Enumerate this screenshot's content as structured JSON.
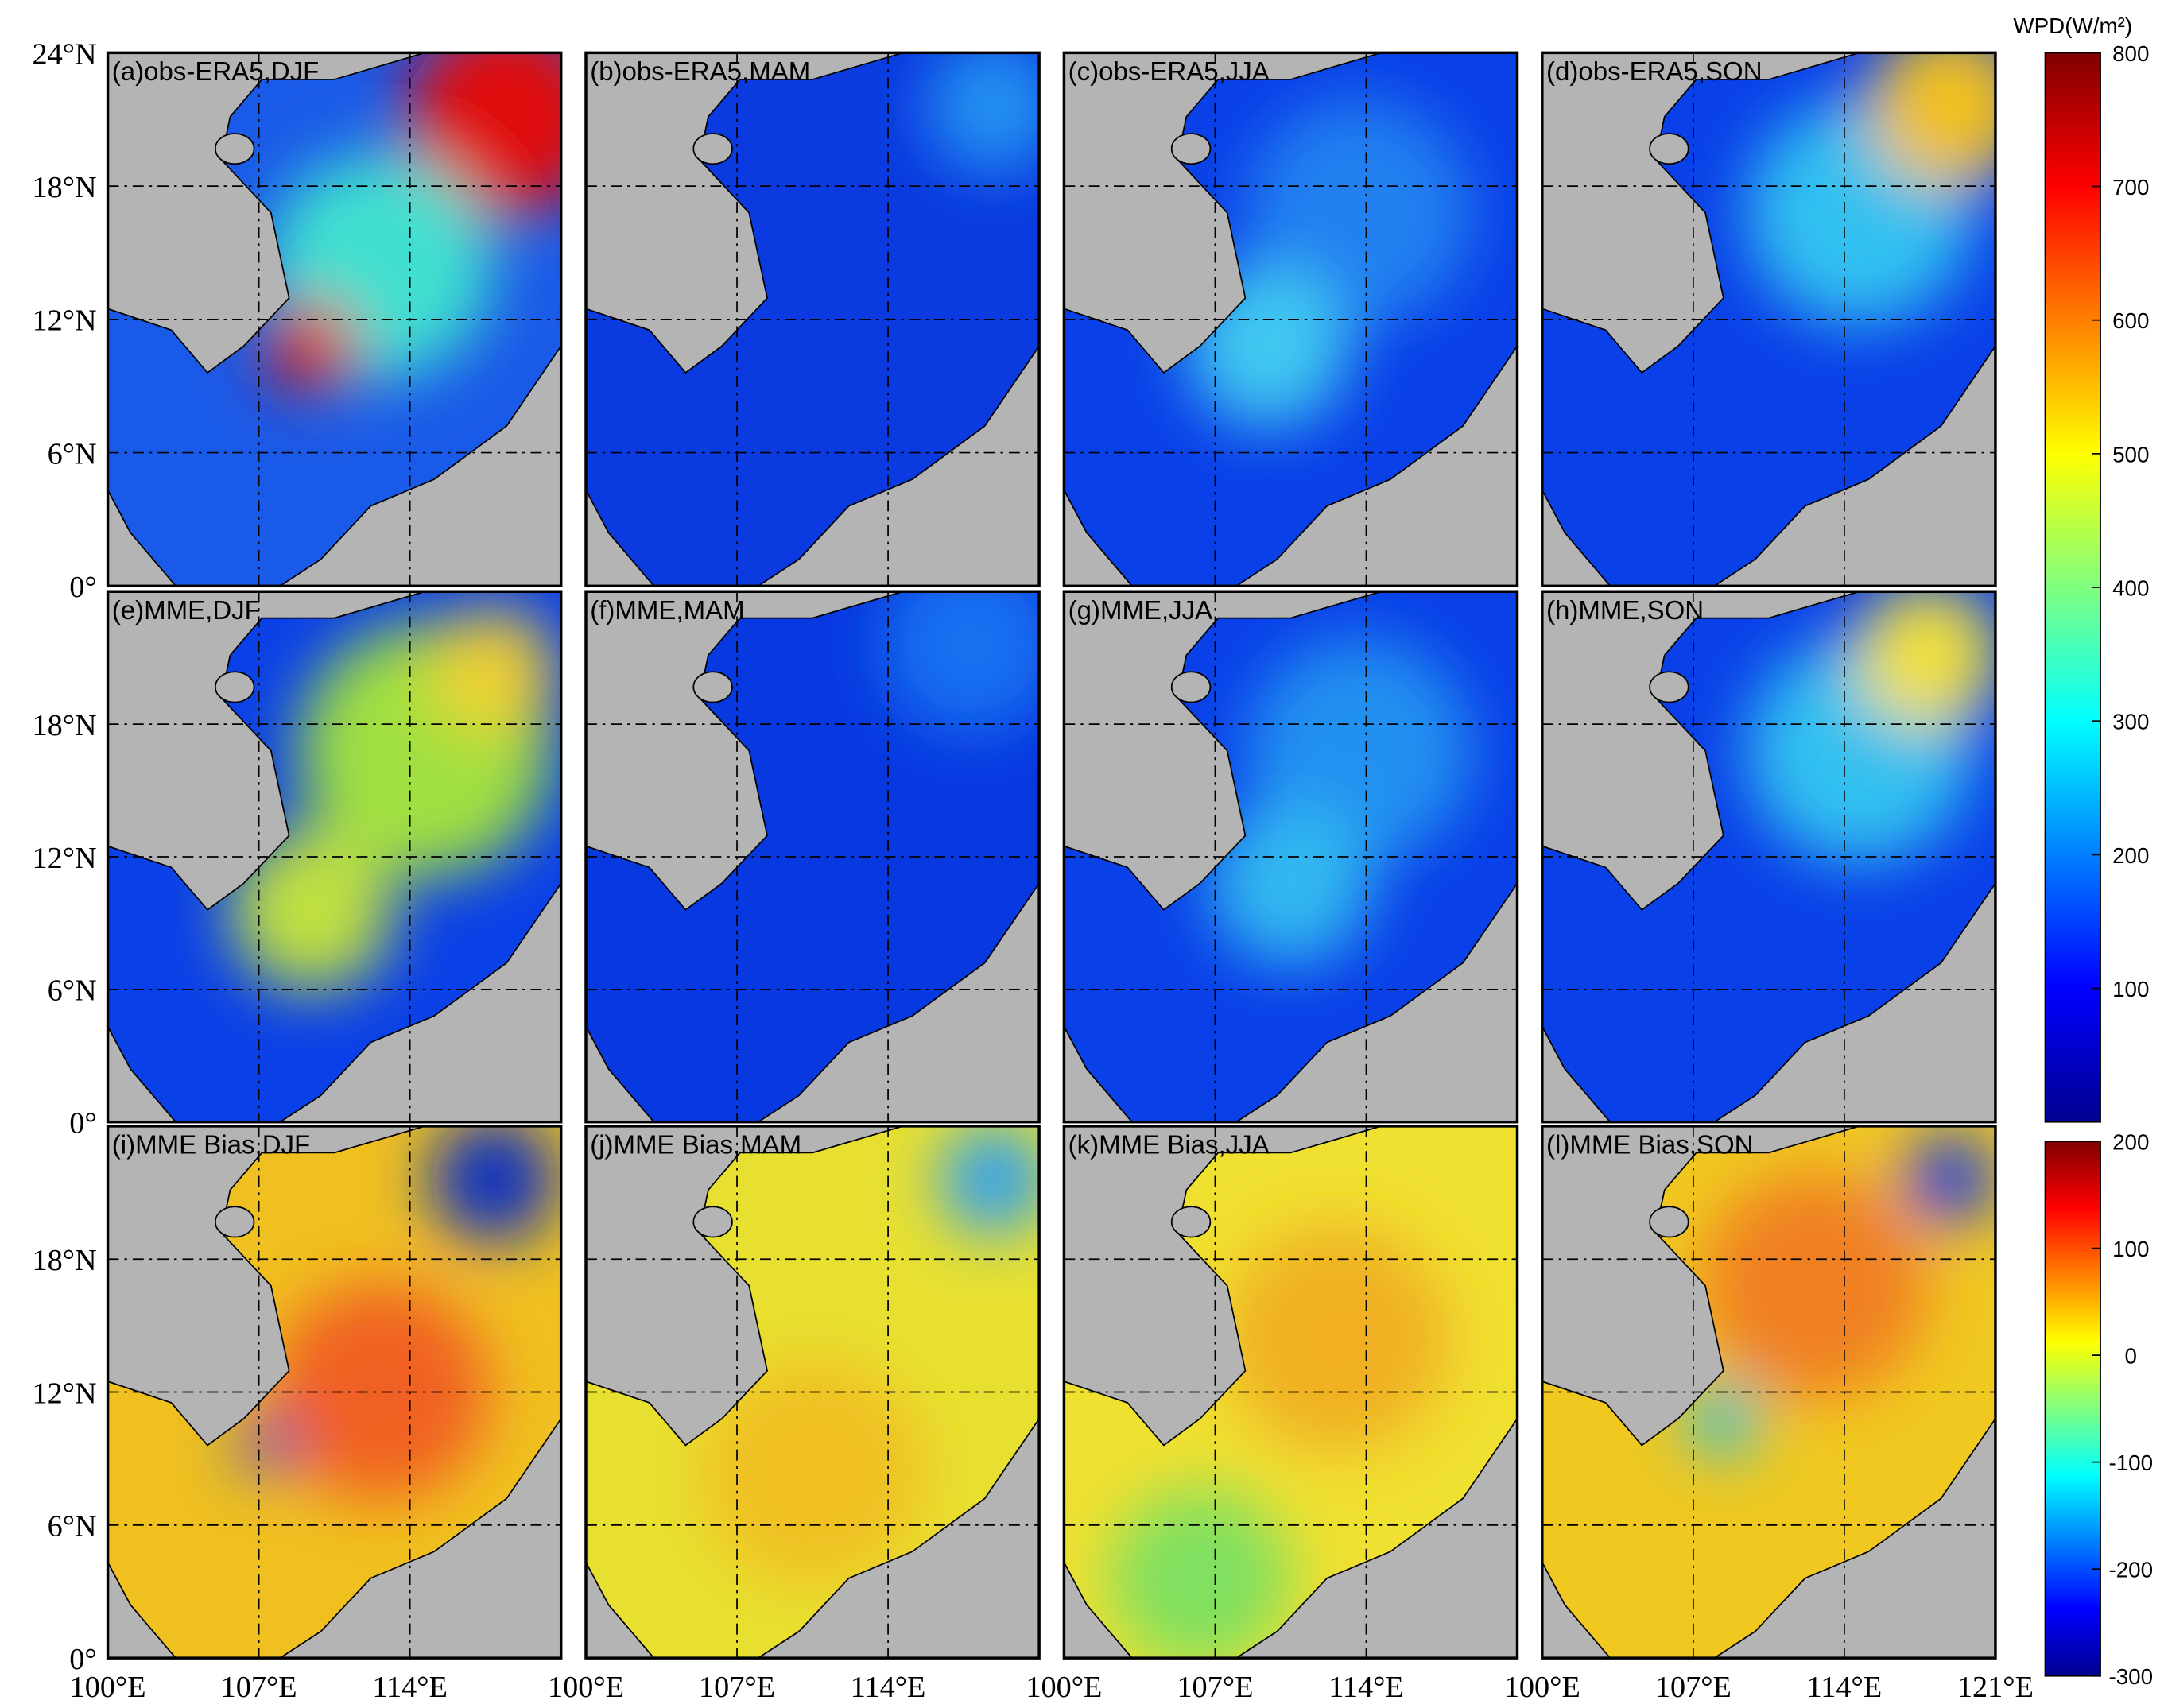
{
  "panels": [
    {
      "label": "(a)obs-ERA5,DJF"
    },
    {
      "label": "(b)obs-ERA5,MAM"
    },
    {
      "label": "(c)obs-ERA5,JJA"
    },
    {
      "label": "(d)obs-ERA5,SON"
    },
    {
      "label": "(e)MME,DJF"
    },
    {
      "label": "(f)MME,MAM"
    },
    {
      "label": "(g)MME,JJA"
    },
    {
      "label": "(h)MME,SON"
    },
    {
      "label": "(i)MME Bias,DJF"
    },
    {
      "label": "(j)MME Bias,MAM"
    },
    {
      "label": "(k)MME Bias,JJA"
    },
    {
      "label": "(l)MME Bias,SON"
    }
  ],
  "lat_axis": {
    "lim": [
      0,
      24
    ],
    "ticks": [
      {
        "value": 24,
        "label": "24°N"
      },
      {
        "value": 18,
        "label": "18°N"
      },
      {
        "value": 12,
        "label": "12°N"
      },
      {
        "value": 6,
        "label": "6°N"
      },
      {
        "value": 0,
        "label": "0°"
      }
    ]
  },
  "lon_axis": {
    "lim": [
      100,
      121
    ],
    "ticks": [
      {
        "value": 100,
        "label": "100°E"
      },
      {
        "value": 107,
        "label": "107°E"
      },
      {
        "value": 114,
        "label": "114°E"
      },
      {
        "value": 121,
        "label": "121°E"
      }
    ]
  },
  "colorbars": [
    {
      "title": "WPD(W/m²)",
      "lim": [
        0,
        800
      ],
      "ticks": [
        100,
        200,
        300,
        400,
        500,
        600,
        700,
        800
      ]
    },
    {
      "lim": [
        -300,
        200
      ],
      "ticks": [
        -300,
        -200,
        -100,
        0,
        100,
        200
      ]
    }
  ]
}
